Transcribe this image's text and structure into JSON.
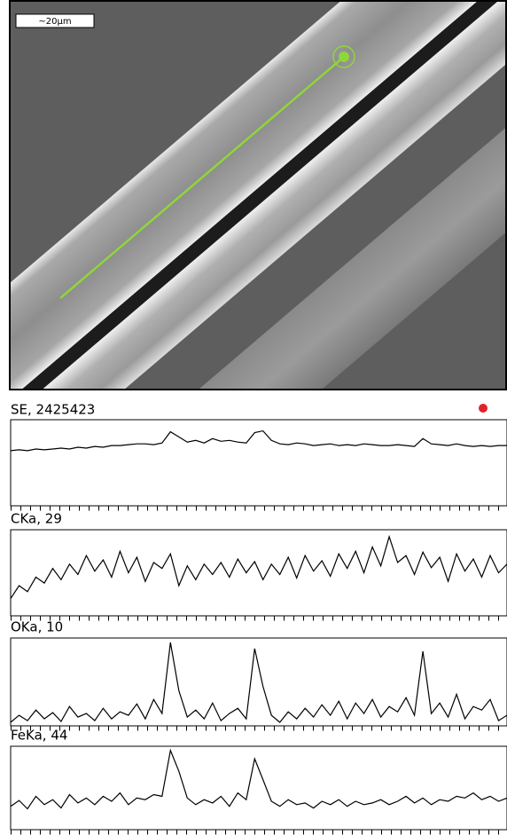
{
  "image": {
    "scale_bar": "~20µm"
  },
  "chart_data": [
    {
      "type": "line",
      "title": "SE, 2425423",
      "color": "#000000",
      "ylim": [
        0,
        100
      ],
      "values": [
        64,
        65,
        64,
        66,
        65,
        66,
        67,
        66,
        68,
        67,
        69,
        68,
        70,
        70,
        71,
        72,
        72,
        71,
        73,
        86,
        80,
        74,
        76,
        73,
        78,
        75,
        76,
        74,
        73,
        85,
        87,
        76,
        72,
        71,
        73,
        72,
        70,
        71,
        72,
        70,
        71,
        70,
        72,
        71,
        70,
        70,
        71,
        70,
        69,
        78,
        72,
        71,
        70,
        72,
        70,
        69,
        70,
        69,
        70,
        70
      ]
    },
    {
      "type": "line",
      "title": "CKa, 29",
      "color": "#000000",
      "ylim": [
        0,
        100
      ],
      "values": [
        20,
        35,
        28,
        45,
        38,
        55,
        42,
        60,
        48,
        70,
        52,
        65,
        45,
        75,
        50,
        68,
        40,
        62,
        55,
        72,
        35,
        58,
        42,
        60,
        48,
        62,
        45,
        66,
        50,
        63,
        42,
        60,
        48,
        68,
        44,
        70,
        52,
        64,
        46,
        72,
        55,
        75,
        50,
        80,
        58,
        92,
        62,
        70,
        48,
        74,
        56,
        68,
        40,
        72,
        52,
        66,
        45,
        70,
        50,
        60
      ]
    },
    {
      "type": "line",
      "title": "OKa, 10",
      "color": "#000000",
      "ylim": [
        0,
        100
      ],
      "values": [
        4,
        12,
        6,
        18,
        8,
        15,
        5,
        22,
        10,
        14,
        6,
        20,
        8,
        16,
        12,
        25,
        8,
        30,
        14,
        95,
        40,
        10,
        18,
        8,
        26,
        6,
        14,
        20,
        8,
        88,
        45,
        12,
        4,
        16,
        8,
        20,
        10,
        24,
        12,
        28,
        8,
        26,
        14,
        30,
        10,
        22,
        16,
        32,
        12,
        85,
        14,
        26,
        10,
        36,
        8,
        22,
        18,
        30,
        6,
        12
      ]
    },
    {
      "type": "line",
      "title": "FeKa, 44",
      "color": "#000000",
      "ylim": [
        0,
        100
      ],
      "values": [
        28,
        35,
        25,
        40,
        30,
        36,
        26,
        42,
        32,
        38,
        30,
        40,
        34,
        44,
        30,
        38,
        36,
        42,
        40,
        95,
        70,
        38,
        30,
        36,
        32,
        40,
        28,
        44,
        36,
        85,
        60,
        34,
        28,
        36,
        30,
        32,
        26,
        34,
        30,
        36,
        28,
        34,
        30,
        32,
        36,
        30,
        34,
        40,
        32,
        38,
        30,
        36,
        34,
        40,
        38,
        44,
        36,
        40,
        34,
        38
      ]
    }
  ]
}
